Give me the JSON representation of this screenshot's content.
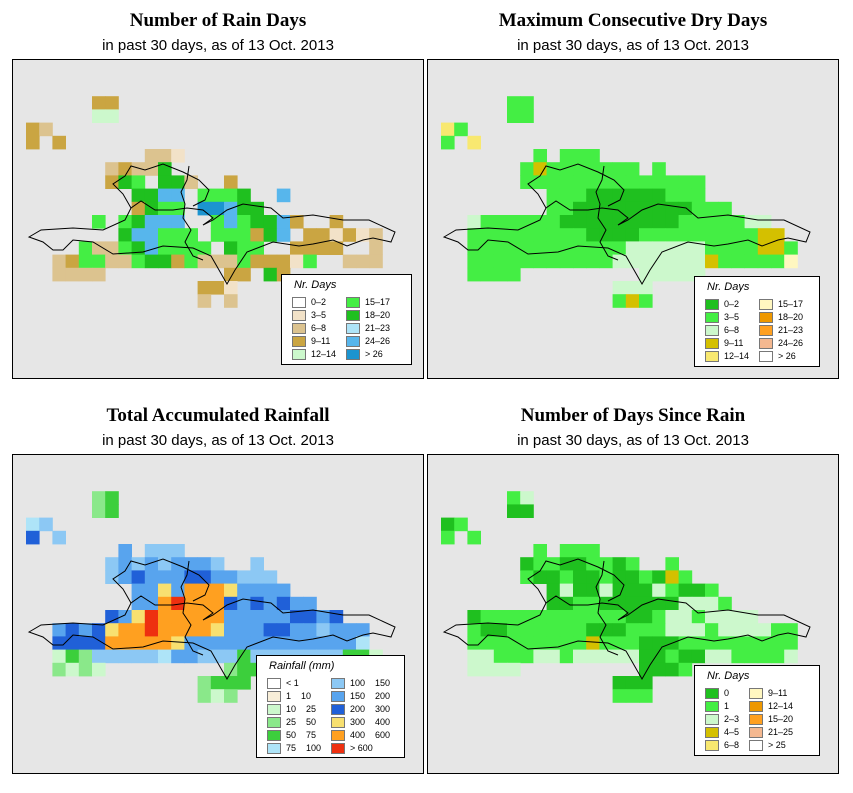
{
  "panels": [
    {
      "title": "Number of Rain Days",
      "subtitle": "in past 30 days, as of  13 Oct. 2013",
      "legend": {
        "title": "Nr. Days",
        "items": [
          {
            "label": "0–2",
            "color": "#ffffff"
          },
          {
            "label": "3–5",
            "color": "#f2e2c8"
          },
          {
            "label": "6–8",
            "color": "#dcc38f"
          },
          {
            "label": "9–11",
            "color": "#caa542"
          },
          {
            "label": "12–14",
            "color": "#ccf8cc"
          },
          {
            "label": "15–17",
            "color": "#44ee44"
          },
          {
            "label": "18–20",
            "color": "#1fc01f"
          },
          {
            "label": "21–23",
            "color": "#aee4f8"
          },
          {
            "label": "24–26",
            "color": "#57b6ec"
          },
          {
            "label": "> 26",
            "color": "#1c94d0"
          }
        ]
      },
      "grid": [
        "............................",
        ".....DD.....................",
        ".....EE.....................",
        "DC..........................",
        "D.D.........................",
        ".......L.CCB.................",
        "......CDCCGLLL..L............",
        "......DGFLGGCLLDKLL..........",
        "........GGIIKFFFGL.I.........",
        "........DGFFKJJIGGL.K........",
        ".....FLFGIIIKKFIFGGIDLLD.....",
        "..LLLLLGIIFFFKFFFDGIKDDBDBC..",
        "..LLFCCFGIFFFFLGFFLLDDDDLLC..",
        "..CDFFCCFGGDFCCCFDDDBF..CCC..",
        "..CCCC.........DDLGD.........",
        ".............DDBL............",
        ".............CLC............."
      ]
    },
    {
      "title": "Maximum Consecutive Dry Days",
      "subtitle": "in past 30 days, as of  13 Oct. 2013",
      "legend": {
        "title": "Nr. Days",
        "items": [
          {
            "label": "0–2",
            "color": "#1fc01f"
          },
          {
            "label": "3–5",
            "color": "#44ee44"
          },
          {
            "label": "6–8",
            "color": "#ccf8cc"
          },
          {
            "label": "9–11",
            "color": "#d4c000"
          },
          {
            "label": "12–14",
            "color": "#f8e870"
          },
          {
            "label": "15–17",
            "color": "#fff7c0"
          },
          {
            "label": "18–20",
            "color": "#ee9800"
          },
          {
            "label": "21–23",
            "color": "#ffa020"
          },
          {
            "label": "24–26",
            "color": "#f4b890"
          },
          {
            "label": "> 26",
            "color": "#ffffff"
          }
        ]
      },
      "grid": [
        "............................",
        ".....BB.....................",
        ".....BB.....................",
        "EB..........................",
        "B.E.........................",
        ".......B.BBB.................",
        "......BDBBBBBBB.B............",
        "......BBBBBBBBBBBBBB.........",
        "........BBBAAAAAABBB.........",
        "........BBAAAAAAAAABBB.......",
        "..CBBBBBBAAAAAAAAABBBBBCC....",
        "..BBBBBBBBBAAAABBBBBBBBBDD...",
        "..BBBBBBBBBBBBCCCCCCBBBBDDB..",
        "..BBBBBBBBBBBCCCCCCCDBBBBBF..",
        "..BBBB.........CCCCC.........",
        ".............CCC.............",
        ".............BDB............."
      ]
    },
    {
      "title": "Total Accumulated Rainfall",
      "subtitle": "in past 30 days, as of  13 Oct. 2013",
      "legend": {
        "title": "Rainfall (mm)",
        "items": [
          {
            "label": "< 1",
            "color": "#ffffff"
          },
          {
            "label": "1    10",
            "color": "#f8eed8"
          },
          {
            "label": "10    25",
            "color": "#ccf8cc"
          },
          {
            "label": "25    50",
            "color": "#8ae88a"
          },
          {
            "label": "50    75",
            "color": "#3ccf3c"
          },
          {
            "label": "75    100",
            "color": "#aee4f8"
          },
          {
            "label": "100    150",
            "color": "#8cc8f4"
          },
          {
            "label": "150    200",
            "color": "#58a4ee"
          },
          {
            "label": "200    300",
            "color": "#2060d8"
          },
          {
            "label": "300    400",
            "color": "#f8e070"
          },
          {
            "label": "400    600",
            "color": "#ffa020"
          },
          {
            "label": "> 600",
            "color": "#ee3010"
          }
        ]
      },
      "grid": [
        "............................",
        ".....DE.....................",
        ".....DE.....................",
        "FG..........................",
        "I.G.........................",
        ".......H.GGG.................",
        "......GHGHGHHHG..G...........",
        "......GHIHHHIIHHGGG..........",
        "........HHJHKKKJHHHH.........",
        "........HHKLKKKIHIHIHH.......",
        "......IHJLKKKKKHHHHHIIHI.....",
        "..HIHIJKKLKKKKJHHHIIHHGHHH...",
        "..IIIIKKKKKJHHHHHHHHHHHHHF...",
        "..CEDGGGGGFHHGGGEGGGGGGGEEC..",
        "..DCDC.........DEEEE.........",
        ".............DEEE............",
        ".............DCD............."
      ]
    },
    {
      "title": "Number of Days Since Rain",
      "subtitle": "in past 30 days, as of  13 Oct. 2013",
      "legend": {
        "title": "Nr. Days",
        "items": [
          {
            "label": "0",
            "color": "#1fc01f"
          },
          {
            "label": "1",
            "color": "#44ee44"
          },
          {
            "label": "2–3",
            "color": "#ccf8cc"
          },
          {
            "label": "4–5",
            "color": "#d4c000"
          },
          {
            "label": "6–8",
            "color": "#f8e870"
          },
          {
            "label": "9–11",
            "color": "#fff7c0"
          },
          {
            "label": "12–14",
            "color": "#ee9800"
          },
          {
            "label": "15–20",
            "color": "#ffa020"
          },
          {
            "label": "21–25",
            "color": "#f4b890"
          },
          {
            "label": "> 25",
            "color": "#ffffff"
          }
        ]
      },
      "grid": [
        "............................",
        ".....BC.....................",
        ".....AA.....................",
        "AB..........................",
        "B.B.........................",
        ".......B.BBB.................",
        "......ABBAABBAB..B...........",
        "......BAABAABAABADB..........",
        "........ACAACAAACBAAB........",
        "........AABBAAAAAACCCB.......",
        "..ABBBBBBBBBBBAABCCBCCCC.....",
        "..BAABBBBBBAAABBBCCCBCCCCBB..",
        "..BBBBBBBBBDBBBAAABBBBBBBBB..",
        "..CCBBBCCBCCCCCAABAACCBBBBC..",
        "..CCCC.........AAAB..........",
        ".............AAA.............",
        ".............BBB............."
      ]
    }
  ]
}
